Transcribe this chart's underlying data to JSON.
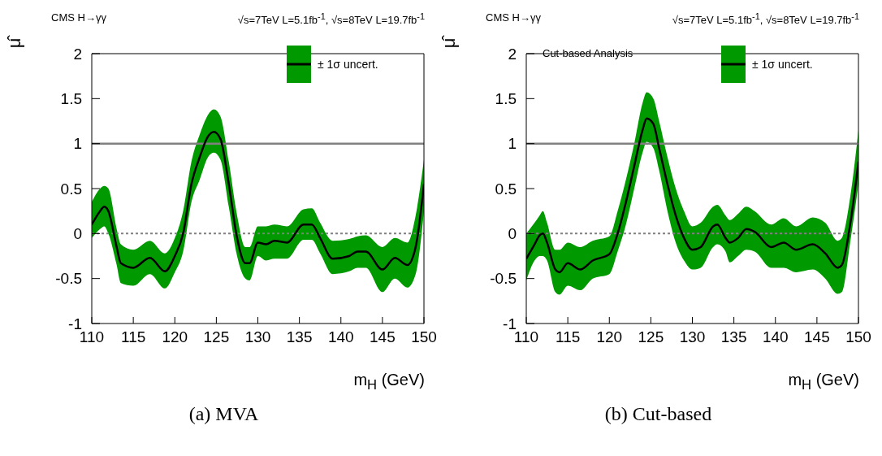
{
  "chart_data": [
    {
      "type": "line",
      "title": "CMS H→γγ",
      "subtitle": "√s=7TeV L=5.1fb$^{-1}$, √s=8TeV L=19.7fb$^{-1}$",
      "xlabel": "m$_{H}$ (GeV)",
      "ylabel": "μ̂",
      "annotations": [
        "(a)  MVA"
      ],
      "legend": "top right",
      "xlim": [
        110,
        150
      ],
      "ylim": [
        -1,
        2
      ],
      "xticks": [
        110,
        115,
        120,
        125,
        130,
        135,
        140,
        145,
        150
      ],
      "yticks": [
        -1,
        -0.5,
        0,
        0.5,
        1,
        1.5,
        2
      ],
      "ref_lines": [
        {
          "axis": "y",
          "value": 1,
          "color": "#808080",
          "line_style": "solid"
        },
        {
          "axis": "y",
          "value": 0,
          "color": "#808080",
          "line_style": "dotted"
        }
      ],
      "series": [
        {
          "name": "± 1σ uncert.",
          "color": "#000000",
          "x": [
            110,
            111,
            111.5,
            112,
            113,
            113.5,
            115,
            117,
            118.8,
            120,
            121,
            122,
            123,
            124,
            124.7,
            125.5,
            126.5,
            127.5,
            128.5,
            129,
            130,
            131,
            132,
            133.5,
            135.5,
            136.5,
            137.5,
            139,
            141,
            142,
            143,
            145,
            146.5,
            148,
            149,
            150
          ],
          "values": [
            0.1,
            0.25,
            0.3,
            0.25,
            -0.15,
            -0.33,
            -0.38,
            -0.27,
            -0.42,
            -0.25,
            0.0,
            0.55,
            0.85,
            1.08,
            1.13,
            1.05,
            0.55,
            -0.05,
            -0.33,
            -0.33,
            -0.1,
            -0.12,
            -0.08,
            -0.1,
            0.1,
            0.1,
            -0.05,
            -0.28,
            -0.25,
            -0.2,
            -0.2,
            -0.4,
            -0.27,
            -0.35,
            -0.15,
            0.55
          ],
          "lower": [
            -0.05,
            0.05,
            0.08,
            0.0,
            -0.35,
            -0.55,
            -0.58,
            -0.45,
            -0.61,
            -0.43,
            -0.2,
            0.35,
            0.6,
            0.85,
            0.9,
            0.82,
            0.3,
            -0.25,
            -0.5,
            -0.52,
            -0.25,
            -0.3,
            -0.28,
            -0.28,
            -0.07,
            -0.07,
            -0.22,
            -0.45,
            -0.42,
            -0.38,
            -0.38,
            -0.65,
            -0.5,
            -0.6,
            -0.45,
            0.25
          ],
          "upper": [
            0.35,
            0.5,
            0.53,
            0.5,
            0.05,
            -0.12,
            -0.18,
            -0.08,
            -0.22,
            -0.05,
            0.25,
            0.8,
            1.1,
            1.32,
            1.38,
            1.3,
            0.8,
            0.2,
            -0.15,
            -0.15,
            0.08,
            0.08,
            0.1,
            0.08,
            0.27,
            0.28,
            0.12,
            -0.08,
            -0.06,
            -0.03,
            -0.02,
            -0.15,
            -0.05,
            -0.1,
            0.2,
            0.82
          ]
        }
      ]
    },
    {
      "type": "line",
      "title": "CMS H→γγ",
      "subtitle": "√s=7TeV L=5.1fb$^{-1}$, √s=8TeV L=19.7fb$^{-1}$",
      "xlabel": "m$_{H}$ (GeV)",
      "ylabel": "μ̂",
      "annotations": [
        "Cut-based Analysis",
        "(b)  Cut-based"
      ],
      "legend": "top right",
      "xlim": [
        110,
        150
      ],
      "ylim": [
        -1,
        2
      ],
      "xticks": [
        110,
        115,
        120,
        125,
        130,
        135,
        140,
        145,
        150
      ],
      "yticks": [
        -1,
        -0.5,
        0,
        0.5,
        1,
        1.5,
        2
      ],
      "ref_lines": [
        {
          "axis": "y",
          "value": 1,
          "color": "#808080",
          "line_style": "solid"
        },
        {
          "axis": "y",
          "value": 0,
          "color": "#808080",
          "line_style": "dotted"
        }
      ],
      "series": [
        {
          "name": "± 1σ uncert.",
          "color": "#000000",
          "x": [
            110,
            111,
            111.6,
            112,
            112.5,
            113.5,
            114,
            115,
            116.5,
            118,
            120,
            121,
            122,
            123,
            124,
            124.5,
            125.3,
            126,
            127,
            128,
            129,
            130,
            131,
            132.5,
            133,
            134,
            134.5,
            135.5,
            136.5,
            137.5,
            139.5,
            141,
            142.5,
            144.5,
            146,
            147.5,
            148,
            149,
            150
          ],
          "values": [
            -0.28,
            -0.12,
            -0.02,
            0.0,
            -0.1,
            -0.4,
            -0.43,
            -0.33,
            -0.4,
            -0.3,
            -0.23,
            0.0,
            0.35,
            0.75,
            1.15,
            1.28,
            1.22,
            0.95,
            0.55,
            0.2,
            -0.05,
            -0.18,
            -0.15,
            0.08,
            0.1,
            -0.05,
            -0.1,
            -0.05,
            0.05,
            0.02,
            -0.15,
            -0.1,
            -0.18,
            -0.12,
            -0.22,
            -0.38,
            -0.35,
            0.1,
            0.8
          ],
          "lower": [
            -0.52,
            -0.3,
            -0.25,
            -0.25,
            -0.3,
            -0.65,
            -0.68,
            -0.58,
            -0.63,
            -0.5,
            -0.45,
            -0.2,
            0.1,
            0.5,
            0.9,
            1.02,
            0.95,
            0.7,
            0.25,
            -0.1,
            -0.3,
            -0.4,
            -0.38,
            -0.15,
            -0.12,
            -0.2,
            -0.32,
            -0.25,
            -0.18,
            -0.2,
            -0.38,
            -0.38,
            -0.43,
            -0.4,
            -0.5,
            -0.67,
            -0.65,
            -0.1,
            0.55
          ],
          "upper": [
            0.0,
            0.12,
            0.2,
            0.25,
            0.12,
            -0.18,
            -0.18,
            -0.1,
            -0.15,
            -0.08,
            -0.03,
            0.25,
            0.6,
            1.0,
            1.45,
            1.57,
            1.5,
            1.25,
            0.85,
            0.5,
            0.25,
            0.08,
            0.12,
            0.3,
            0.32,
            0.2,
            0.15,
            0.22,
            0.3,
            0.25,
            0.1,
            0.17,
            0.08,
            0.18,
            0.12,
            -0.08,
            -0.05,
            0.4,
            1.15
          ]
        }
      ]
    }
  ]
}
